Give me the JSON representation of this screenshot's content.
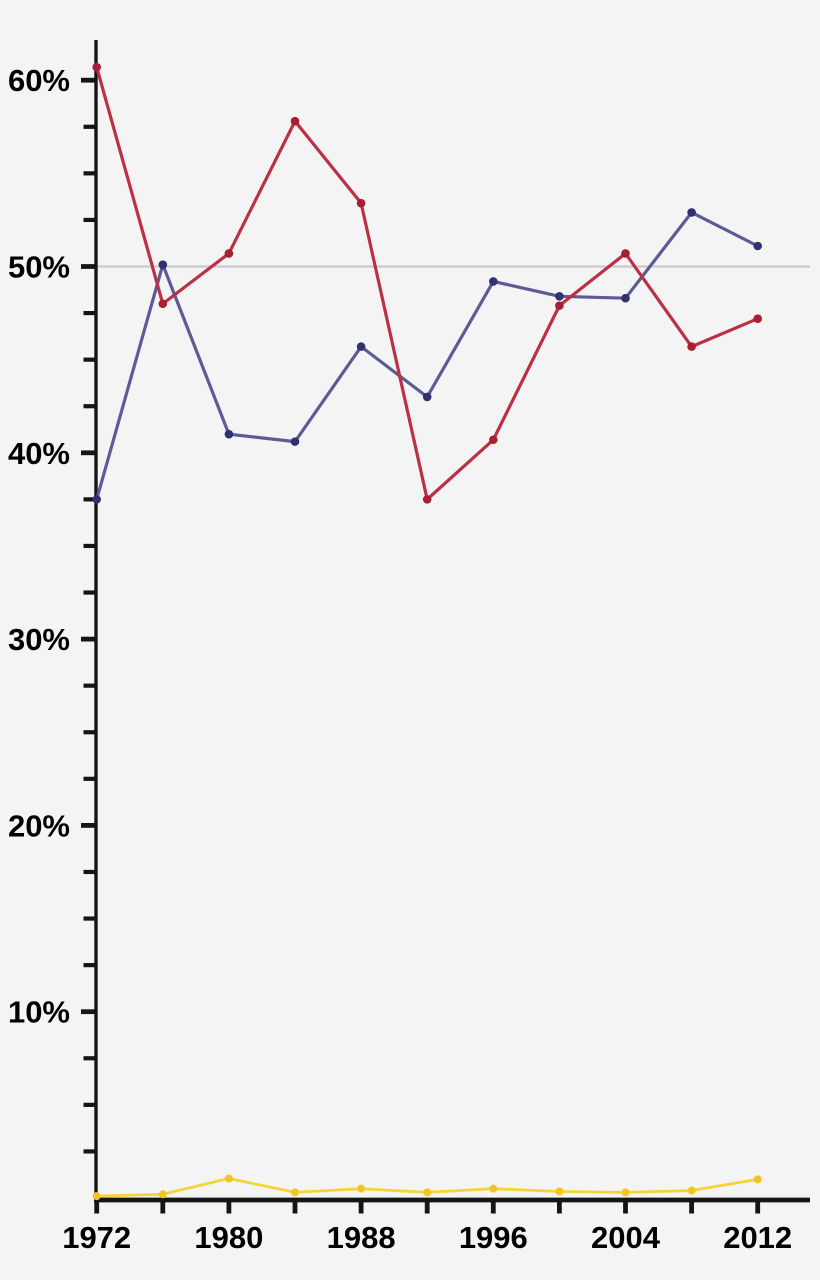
{
  "figure": {
    "background_color": "#f5f4f5",
    "axis_color": "#151515",
    "gridline_color": "#cbcbcb",
    "label_color": "#000000"
  },
  "chart_data": {
    "type": "line",
    "title": "",
    "xlabel": "",
    "ylabel": "",
    "x": [
      1972,
      1976,
      1980,
      1984,
      1988,
      1992,
      1996,
      2000,
      2004,
      2008,
      2012
    ],
    "series": [
      {
        "name": "series-blue",
        "color": "#5b5b96",
        "point_color": "#31316f",
        "line_width": 3.2,
        "point_radius": 4.3,
        "values": [
          37.5,
          50.1,
          41.0,
          40.6,
          45.7,
          43.0,
          49.2,
          48.4,
          48.3,
          52.9,
          51.1
        ]
      },
      {
        "name": "series-red",
        "color": "#bb3044",
        "point_color": "#a61f33",
        "line_width": 3.2,
        "point_radius": 4.3,
        "values": [
          60.7,
          48.0,
          50.7,
          57.8,
          53.4,
          37.5,
          40.7,
          47.9,
          50.7,
          45.7,
          47.2
        ]
      },
      {
        "name": "series-yellow",
        "color": "#f7d336",
        "point_color": "#f1c622",
        "line_width": 2.8,
        "point_radius": 4.0,
        "values": [
          0.1,
          0.2,
          1.05,
          0.3,
          0.5,
          0.3,
          0.5,
          0.35,
          0.3,
          0.4,
          1.0
        ]
      }
    ],
    "x_tick_labels": [
      "1972",
      "1980",
      "1988",
      "1996",
      "2004",
      "2012"
    ],
    "x_tick_step": 4,
    "xlim": [
      1972,
      2012
    ],
    "y_major_ticks": [
      10,
      20,
      30,
      40,
      50,
      60
    ],
    "y_tick_labels": [
      "10%",
      "20%",
      "30%",
      "40%",
      "50%",
      "60%"
    ],
    "y_minor_step": 2.5,
    "ylim": [
      0,
      62.2
    ],
    "gridlines_at": [
      50
    ],
    "legend_position": "none",
    "grid": "horizontal line at 50% only"
  }
}
